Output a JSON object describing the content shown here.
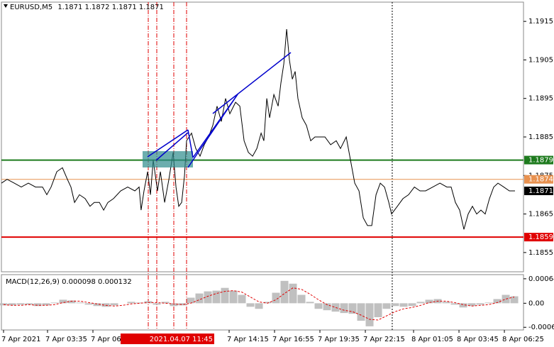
{
  "chart_data": [
    {
      "type": "line",
      "title": "EURUSD,M5",
      "ohlc": [
        1.1871,
        1.1872,
        1.1871,
        1.1871
      ],
      "color": "#000000",
      "x": [
        0.88,
        1.21,
        1.63,
        2.04,
        2.46,
        2.88,
        3.29,
        3.54,
        3.79,
        4.13,
        4.46,
        4.75,
        4.96,
        5.17,
        5.46,
        5.79,
        6.08,
        6.33,
        6.63,
        6.88,
        7.13,
        7.46,
        7.88,
        8.29,
        8.71,
        8.96,
        9.08,
        9.25,
        9.46,
        9.63,
        9.79,
        10.04,
        10.21,
        10.46,
        10.71,
        10.96,
        11.13,
        11.29,
        11.46,
        11.63,
        11.75,
        12.04,
        12.29,
        12.54,
        12.79,
        13.04,
        13.29,
        13.54,
        13.79,
        14.04,
        14.29,
        14.63,
        14.88,
        15.13,
        15.38,
        15.63,
        15.88,
        16.13,
        16.29,
        16.46,
        16.63,
        16.88,
        17.13,
        17.29,
        17.46,
        17.63,
        17.79,
        17.96,
        18.13,
        18.29,
        18.54,
        18.79,
        19.04,
        19.29,
        19.54,
        19.88,
        20.21,
        20.54,
        20.79,
        21.13,
        21.38,
        21.63,
        21.88,
        22.13,
        22.38,
        22.63,
        22.88,
        23.13,
        23.38,
        23.63,
        23.79,
        24.13,
        24.46,
        24.79,
        25.13,
        25.46,
        25.79,
        26.21,
        26.63,
        27.04,
        27.29,
        27.54,
        27.79,
        28.04,
        28.29,
        28.54,
        28.79,
        29.04,
        29.29,
        29.54,
        29.79,
        30.04,
        30.38,
        30.71,
        31.04
      ],
      "values": [
        1.1873,
        1.1874,
        1.1873,
        1.1872,
        1.1873,
        1.1872,
        1.1872,
        1.187,
        1.1872,
        1.1876,
        1.1877,
        1.1874,
        1.1872,
        1.1868,
        1.187,
        1.1869,
        1.1867,
        1.1868,
        1.1868,
        1.1866,
        1.1868,
        1.1869,
        1.1871,
        1.1872,
        1.1871,
        1.1872,
        1.1866,
        1.1871,
        1.1876,
        1.187,
        1.1879,
        1.1871,
        1.1876,
        1.1868,
        1.1874,
        1.1881,
        1.1872,
        1.1867,
        1.1868,
        1.1875,
        1.1884,
        1.1886,
        1.1882,
        1.188,
        1.1883,
        1.1885,
        1.1888,
        1.1893,
        1.1889,
        1.1895,
        1.1891,
        1.1894,
        1.1893,
        1.1884,
        1.1881,
        1.188,
        1.1882,
        1.1886,
        1.1884,
        1.1895,
        1.189,
        1.1896,
        1.1893,
        1.1899,
        1.1904,
        1.1913,
        1.1905,
        1.19,
        1.1902,
        1.1895,
        1.189,
        1.1888,
        1.1884,
        1.1885,
        1.1885,
        1.1885,
        1.1883,
        1.1884,
        1.1882,
        1.1885,
        1.1879,
        1.1873,
        1.1871,
        1.1864,
        1.1862,
        1.1862,
        1.187,
        1.1873,
        1.1872,
        1.1868,
        1.1865,
        1.1867,
        1.1869,
        1.187,
        1.1872,
        1.1871,
        1.1871,
        1.1872,
        1.1873,
        1.1872,
        1.1872,
        1.1868,
        1.1866,
        1.1861,
        1.1865,
        1.1867,
        1.1865,
        1.1866,
        1.1865,
        1.1869,
        1.1872,
        1.1873,
        1.1872,
        1.1871,
        1.1871
      ],
      "xlim": [
        0.875,
        31.54
      ],
      "xticks": [
        {
          "value": 1.0,
          "label": "7 Apr 2021"
        },
        {
          "value": 3.583,
          "label": "7 Apr 03:35"
        },
        {
          "value": 6.25,
          "label": "7 Apr 06:15"
        },
        {
          "value": 14.25,
          "label": "7 Apr 14:15"
        },
        {
          "value": 16.917,
          "label": "7 Apr 16:55"
        },
        {
          "value": 19.583,
          "label": "7 Apr 19:35"
        },
        {
          "value": 22.25,
          "label": "7 Apr 22:15"
        },
        {
          "value": 25.083,
          "label": "8 Apr 01:05"
        },
        {
          "value": 27.75,
          "label": "8 Apr 03:45"
        },
        {
          "value": 30.417,
          "label": "8 Apr 06:25"
        }
      ],
      "ylim": [
        1.185,
        1.192
      ],
      "yticks": [
        1.1915,
        1.1905,
        1.1895,
        1.1885,
        1.1875,
        1.1865,
        1.1855
      ],
      "levels": [
        {
          "value": 1.1879,
          "color": "#1e7b1e"
        },
        {
          "value": 1.1874,
          "color": "#e8914f"
        },
        {
          "value": 1.1859,
          "color": "#e00000"
        }
      ],
      "last": {
        "value": 1.1871,
        "color": "#000000"
      },
      "time_marker": {
        "value": 11.75,
        "label": "2021.04.07 11:45",
        "color": "#e00000"
      },
      "vlines": [
        9.5,
        10.0,
        11.0,
        11.75
      ],
      "separators": [
        23.83
      ]
    },
    {
      "type": "macd",
      "title": "MACD(12,26,9)",
      "x": [
        1,
        1.5,
        2,
        2.5,
        3,
        3.5,
        4,
        4.5,
        5,
        5.5,
        6,
        6.5,
        7,
        7.5,
        8,
        8.5,
        9,
        9.5,
        10,
        10.5,
        11,
        11.5,
        12,
        12.5,
        13,
        13.5,
        14,
        14.5,
        15,
        15.5,
        16,
        16.5,
        17,
        17.5,
        18,
        18.5,
        19,
        19.5,
        20,
        20.5,
        21,
        21.5,
        22,
        22.5,
        23,
        23.5,
        24,
        24.5,
        25,
        25.5,
        26,
        26.5,
        27,
        27.5,
        28,
        28.5,
        29,
        29.5,
        30,
        30.5,
        31
      ],
      "series": [
        {
          "current": 9.8e-05,
          "color": "#c0c0c0",
          "values": [
            -5.5e-05,
            -5.5e-05,
            -3.7e-05,
            -3.7e-05,
            -7.3e-05,
            -5.5e-05,
            1.8e-05,
            9.2e-05,
            7.3e-05,
            1.8e-05,
            -3.7e-05,
            -7.3e-05,
            -9.2e-05,
            -5.5e-05,
            0,
            3.7e-05,
            1.8e-05,
            5.5e-05,
            -3.7e-05,
            3.7e-05,
            -7.3e-05,
            -5.5e-05,
            0.000146,
            0.000256,
            0.000311,
            0.00033,
            0.000403,
            0.00033,
            0.00022,
            -9.2e-05,
            -0.000146,
            3.7e-05,
            0.000275,
            0.000586,
            0.000513,
            0.00022,
            3.7e-05,
            -0.000146,
            -0.000183,
            -0.00022,
            -0.000256,
            -0.000275,
            -0.000458,
            -0.000604,
            -0.000366,
            -0.000146,
            -7.3e-05,
            -9.2e-05,
            -7.3e-05,
            3.7e-05,
            9.2e-05,
            0.00011,
            3.7e-05,
            -3.7e-05,
            -0.00011,
            -7.3e-05,
            -3.7e-05,
            1.8e-05,
            0.00011,
            0.00022,
            0.000183
          ]
        },
        {
          "current": 0.000132,
          "color": "#e00000",
          "values": [
            -3.7e-05,
            -5.5e-05,
            -5.5e-05,
            -3.7e-05,
            -5.5e-05,
            -5.5e-05,
            -3.7e-05,
            1.8e-05,
            5.5e-05,
            5.5e-05,
            1.8e-05,
            -1.8e-05,
            -5.5e-05,
            -7.3e-05,
            -5.5e-05,
            -1.8e-05,
            0,
            1.8e-05,
            1.8e-05,
            0,
            -1.8e-05,
            -3.7e-05,
            0,
            9.2e-05,
            0.000183,
            0.000256,
            0.000311,
            0.00033,
            0.000293,
            0.000165,
            3.7e-05,
            0,
            9.2e-05,
            0.000256,
            0.000403,
            0.000366,
            0.000238,
            9.2e-05,
            -3.7e-05,
            -0.00011,
            -0.000183,
            -0.00022,
            -0.000311,
            -0.000421,
            -0.000439,
            -0.00033,
            -0.00022,
            -0.000146,
            -0.00011,
            -5.5e-05,
            1.8e-05,
            5.5e-05,
            5.5e-05,
            1.8e-05,
            -3.7e-05,
            -7.3e-05,
            -5.5e-05,
            -3.7e-05,
            1.8e-05,
            0.00011,
            0.000165
          ]
        }
      ],
      "xlim": [
        0.875,
        31.54
      ],
      "ylim": [
        -0.0007,
        0.00075
      ],
      "yticks": [
        0.000641,
        {
          "value": 0,
          "label": "0.00"
        },
        -0.00063
      ]
    }
  ]
}
